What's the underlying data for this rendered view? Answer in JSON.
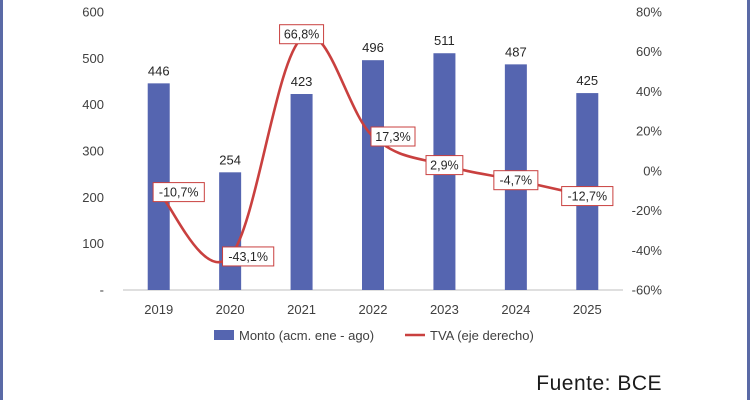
{
  "chart_data": {
    "type": "bar",
    "categories": [
      "2019",
      "2020",
      "2021",
      "2022",
      "2023",
      "2024",
      "2025"
    ],
    "series": [
      {
        "name": "Monto (acm. ene - ago)",
        "type": "bar",
        "axis": "left",
        "values": [
          446,
          254,
          423,
          496,
          511,
          487,
          425
        ],
        "labels": [
          "446",
          "254",
          "423",
          "496",
          "511",
          "487",
          "425"
        ],
        "color": "#5565b0"
      },
      {
        "name": "TVA (eje derecho)",
        "type": "line",
        "axis": "right",
        "values": [
          -10.7,
          -43.1,
          66.8,
          17.3,
          2.9,
          -4.7,
          -12.7
        ],
        "labels": [
          "-10,7%",
          "-43,1%",
          "66,8%",
          "17,3%",
          "2,9%",
          "-4,7%",
          "-12,7%"
        ],
        "color": "#c9403f"
      }
    ],
    "y_left": {
      "ylim": [
        0,
        600
      ],
      "ticks": [
        "-",
        "100",
        "200",
        "300",
        "400",
        "500",
        "600"
      ]
    },
    "y_right": {
      "ylim": [
        -60,
        80
      ],
      "ticks": [
        "-60%",
        "-40%",
        "-20%",
        "0%",
        "20%",
        "40%",
        "60%",
        "80%"
      ]
    },
    "grid": false,
    "legend": "bottom"
  },
  "source": "Fuente: BCE"
}
